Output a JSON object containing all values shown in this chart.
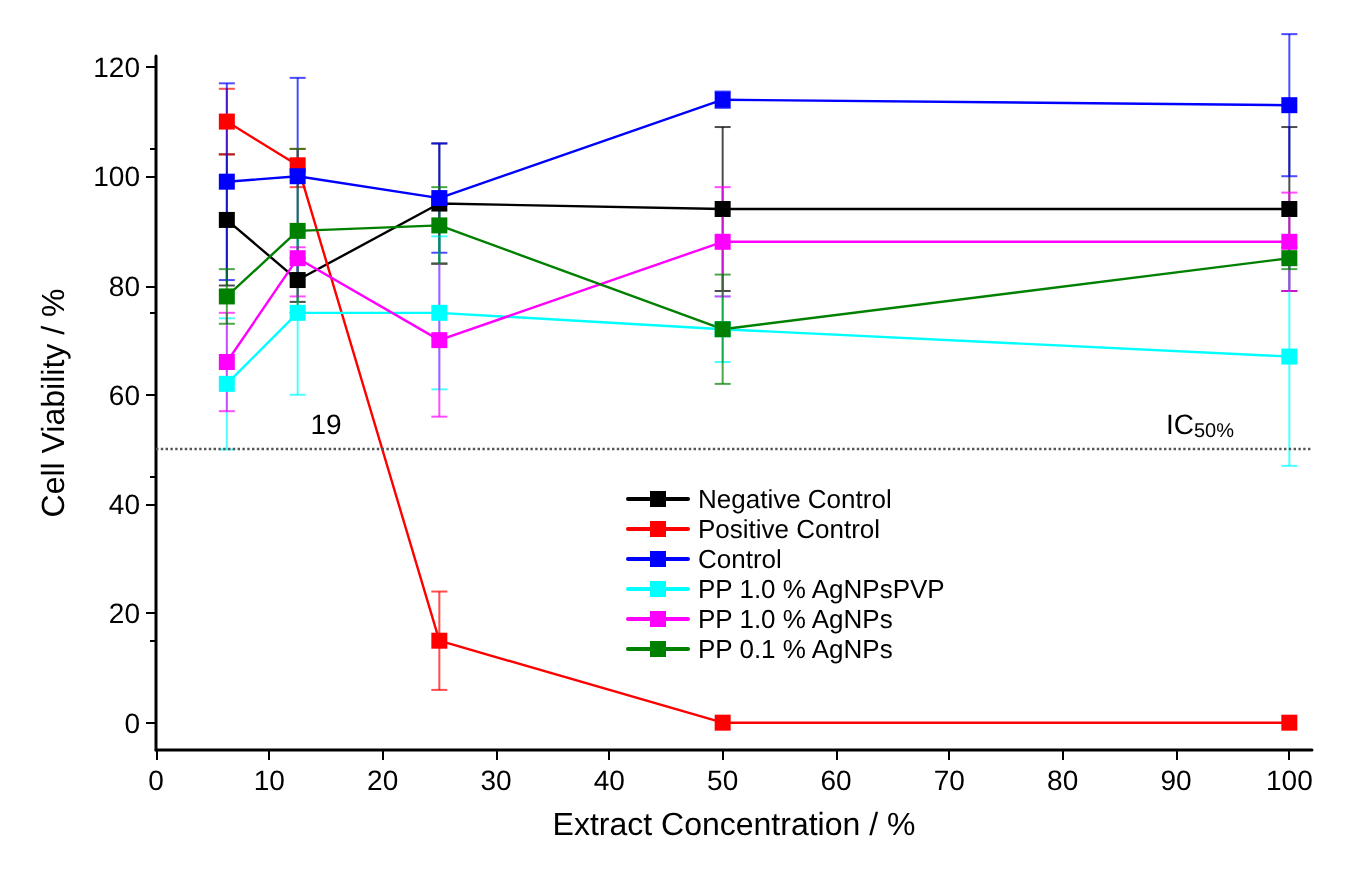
{
  "chart_data": {
    "type": "line",
    "xlabel": "Extract Concentration / %",
    "ylabel": "Cell Viability / %",
    "x": [
      6.25,
      12.5,
      25,
      50,
      100
    ],
    "series": [
      {
        "name": "Negative Control",
        "color": "#000000",
        "values": [
          92,
          81,
          95,
          94,
          94
        ],
        "errors": [
          12,
          4,
          11,
          15,
          15
        ]
      },
      {
        "name": "Positive Control",
        "color": "#ff0000",
        "values": [
          110,
          102,
          15,
          0,
          0
        ],
        "errors": [
          6,
          [
            98,
            105
          ],
          9,
          null,
          null
        ]
      },
      {
        "name": "Control",
        "color": "#0000ff",
        "values": [
          99,
          100,
          96,
          114,
          113
        ],
        "errors": [
          18,
          18,
          10,
          1.5,
          13
        ]
      },
      {
        "name": "PP 1.0 % AgNPsPVP",
        "color": "#00ffff",
        "values": [
          62,
          75,
          75,
          72,
          67
        ],
        "errors": [
          12,
          15,
          14,
          [
            66,
            78
          ],
          20
        ]
      },
      {
        "name": "PP 1.0 % AgNPs",
        "color": "#ff00ff",
        "values": [
          66,
          85,
          70,
          88,
          88
        ],
        "errors": [
          9,
          [
            78,
            87
          ],
          14,
          10,
          9
        ]
      },
      {
        "name": "PP 0.1 % AgNPs",
        "color": "#008000",
        "values": [
          78,
          90,
          91,
          72,
          85
        ],
        "errors": [
          5,
          15,
          7,
          10,
          2
        ]
      }
    ],
    "xlim": [
      0,
      102
    ],
    "xticks": [
      0,
      10,
      20,
      30,
      40,
      50,
      60,
      70,
      80,
      90,
      100
    ],
    "ylim": [
      -5,
      122
    ],
    "yticks": [
      0,
      20,
      40,
      60,
      80,
      100,
      120
    ],
    "ref_lines": [
      {
        "axis": "y",
        "value": 50,
        "line_style": "dotted",
        "color": "#555555"
      }
    ],
    "annotations": [
      "19",
      "IC$_{50%}$"
    ],
    "marker": "square",
    "line_style": "solid",
    "grid": false,
    "legend": "bottom"
  }
}
